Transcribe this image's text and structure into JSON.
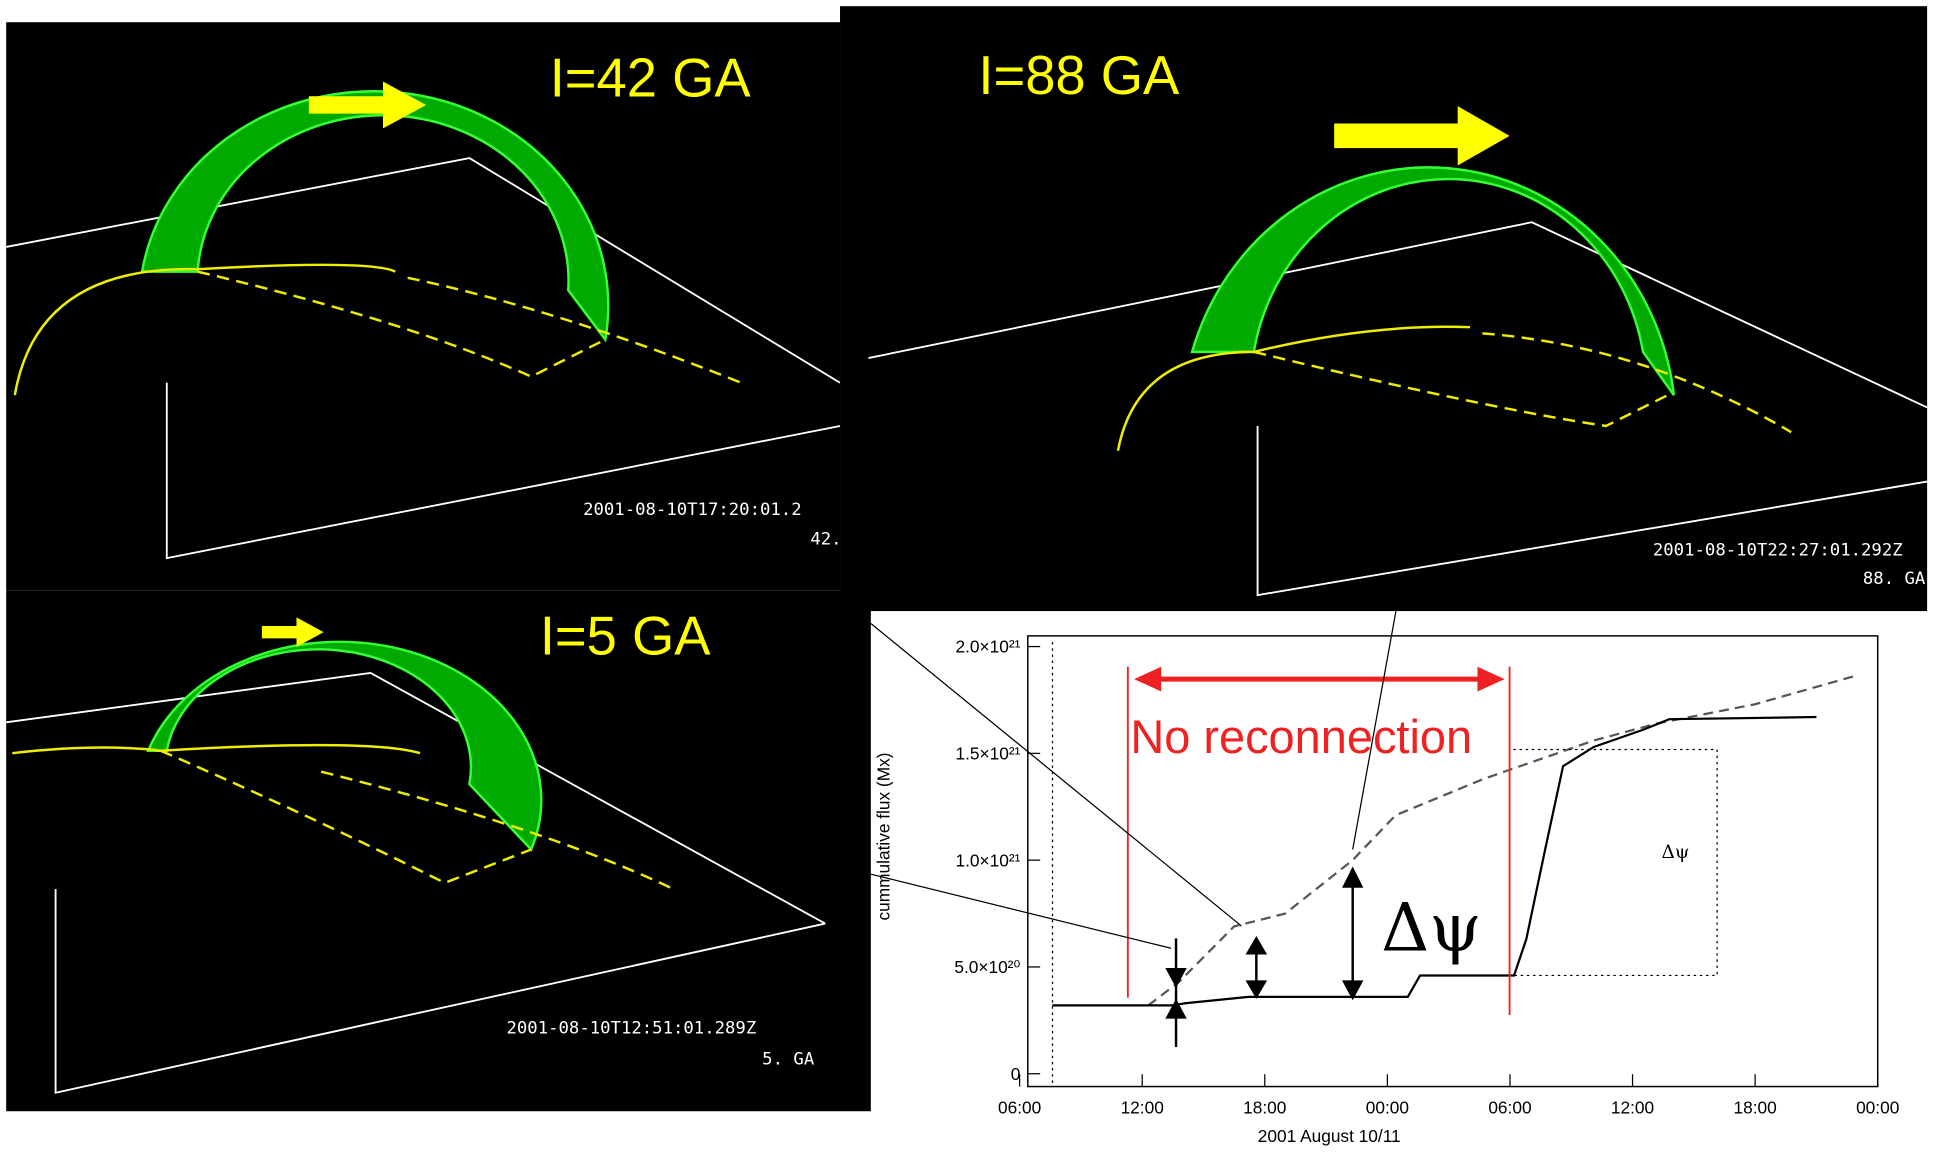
{
  "panels": [
    {
      "label": "I=42 GA",
      "timestamp": "2001-08-10T17:20:01.2",
      "current": "42."
    },
    {
      "label": "I=88 GA",
      "timestamp": "2001-08-10T22:27:01.292Z",
      "current": "88. GA"
    },
    {
      "label": "I=5 GA",
      "timestamp": "2001-08-10T12:51:01.289Z",
      "current": "5. GA"
    }
  ],
  "chart_data": {
    "type": "line",
    "xlabel": "2001 August 10/11",
    "ylabel": "cummulative flux (Mx)",
    "xlim": [
      6.4,
      48
    ],
    "ylim": [
      -6e+19,
      2.05e+21
    ],
    "xticks": [
      {
        "value": 6,
        "label": "06:00"
      },
      {
        "value": 12,
        "label": "12:00"
      },
      {
        "value": 18,
        "label": "18:00"
      },
      {
        "value": 24,
        "label": "00:00"
      },
      {
        "value": 30,
        "label": "06:00"
      },
      {
        "value": 36,
        "label": "12:00"
      },
      {
        "value": 42,
        "label": "18:00"
      },
      {
        "value": 48,
        "label": "00:00"
      }
    ],
    "yticks": [
      0,
      {
        "value": 5e+20,
        "label": "5.0×10²⁰"
      },
      {
        "value": 1e+21,
        "label": "1.0×10²¹"
      },
      {
        "value": 1.5e+21,
        "label": "1.5×10²¹"
      },
      {
        "value": 2e+21,
        "label": "2.0×10²¹"
      }
    ],
    "series": [
      {
        "name": "dashed",
        "color": "#555555",
        "dash": true,
        "x": [
          12.3,
          13.8,
          16.5,
          19.0,
          22.3,
          24.4,
          28.7,
          34.1,
          37.2,
          42.0,
          46.8
        ],
        "values": [
          3.2e+20,
          4.3e+20,
          6.9e+20,
          7.5e+20,
          1e+21,
          1.21e+21,
          1.38e+21,
          1.56e+21,
          1.64e+21,
          1.73e+21,
          1.86e+21
        ]
      },
      {
        "name": "solid",
        "color": "#000000",
        "dash": false,
        "x": [
          7.6,
          13.5,
          14.1,
          17.2,
          25.0,
          25.6,
          30.2,
          30.8,
          31.7,
          32.6,
          34.1,
          36.5,
          37.8,
          45.0
        ],
        "values": [
          3.2e+20,
          3.2e+20,
          3.3e+20,
          3.6e+20,
          3.6e+20,
          4.6e+20,
          4.6e+20,
          6.3e+20,
          1.04e+21,
          1.44e+21,
          1.53e+21,
          1.61e+21,
          1.66e+21,
          1.67e+21
        ]
      }
    ],
    "annotations": [
      "No reconnection",
      "Δψ",
      "Δψ"
    ]
  }
}
